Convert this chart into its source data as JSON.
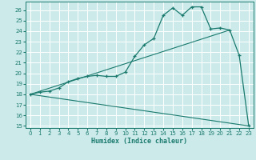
{
  "xlabel": "Humidex (Indice chaleur)",
  "bg_color": "#cceaea",
  "grid_color": "#ffffff",
  "line_color": "#1a7a6e",
  "xlim": [
    -0.5,
    23.5
  ],
  "ylim": [
    14.8,
    26.8
  ],
  "yticks": [
    15,
    16,
    17,
    18,
    19,
    20,
    21,
    22,
    23,
    24,
    25,
    26
  ],
  "xticks": [
    0,
    1,
    2,
    3,
    4,
    5,
    6,
    7,
    8,
    9,
    10,
    11,
    12,
    13,
    14,
    15,
    16,
    17,
    18,
    19,
    20,
    21,
    22,
    23
  ],
  "series1_x": [
    0,
    1,
    2,
    3,
    4,
    5,
    6,
    7,
    8,
    9,
    10,
    11,
    12,
    13,
    14,
    15,
    16,
    17,
    18,
    19,
    20,
    21,
    22,
    23
  ],
  "series1_y": [
    18.0,
    18.2,
    18.3,
    18.6,
    19.2,
    19.5,
    19.7,
    19.8,
    19.7,
    19.7,
    20.1,
    21.6,
    22.7,
    23.3,
    25.5,
    26.2,
    25.5,
    26.3,
    26.3,
    24.2,
    24.3,
    24.1,
    21.7,
    15.0
  ],
  "series2_x": [
    0,
    23
  ],
  "series2_y": [
    18.0,
    15.0
  ],
  "series3_x": [
    0,
    21
  ],
  "series3_y": [
    18.0,
    24.1
  ],
  "xlabel_fontsize": 6.0,
  "tick_fontsize": 5.0
}
